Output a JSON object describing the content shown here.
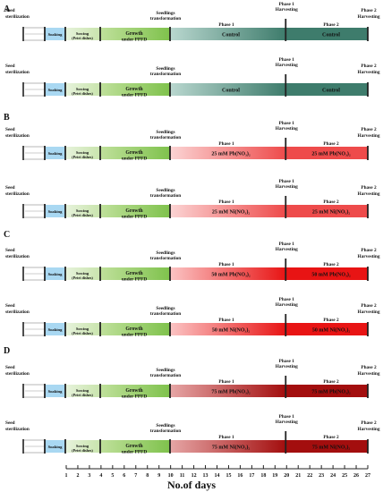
{
  "sections": [
    {
      "letter": "A",
      "rows": [
        {
          "seed": [
            "Seed",
            "sterilization"
          ],
          "soaking": "Soaking",
          "sowing": [
            "Sowing",
            "(Petri dishes)"
          ],
          "growth": [
            "Growth",
            "under PPFD"
          ],
          "transformation": [
            "Seedlings",
            "transformation"
          ],
          "phase1": "Phase 1",
          "phase1_harvest": [
            "Phase 1",
            "Harvesting"
          ],
          "phase2": "Phase 2",
          "phase2_harvest": [
            "Phase 2",
            "Harvesting"
          ],
          "treatment1": "Control",
          "treatment2": "Control",
          "colors": {
            "fade": "#b9d7cf",
            "end": "#3e7c6c"
          }
        },
        {
          "seed": [
            "Seed",
            "sterilization"
          ],
          "soaking": "Soaking",
          "sowing": [
            "Sowing",
            "(Petri dishes)"
          ],
          "growth": [
            "Growth",
            "under PPFD"
          ],
          "transformation": [
            "Seedlings",
            "transformation"
          ],
          "phase1": "",
          "phase1_harvest": [
            "Phase 1",
            "Harvesting"
          ],
          "phase2": "",
          "phase2_harvest": [
            "Phase 2",
            "Harvesting"
          ],
          "treatment1": "Control",
          "treatment2": "Control",
          "colors": {
            "fade": "#b9d7cf",
            "end": "#3e7c6c"
          }
        }
      ]
    },
    {
      "letter": "B",
      "rows": [
        {
          "seed": [
            "Seed",
            "sterilization"
          ],
          "soaking": "Soaking",
          "sowing": [
            "Sowing",
            "(Petri dishes)"
          ],
          "growth": [
            "Growth",
            "under PPFD"
          ],
          "transformation": [
            "Seedlings",
            "transformation"
          ],
          "phase1": "Phase 1",
          "phase1_harvest": [
            "Phase 1",
            "Harvesting"
          ],
          "phase2": "Phase 2",
          "phase2_harvest": [
            "Phase 2",
            "Harvesting"
          ],
          "treatment1": "25 mM Pb(NO₃)₂",
          "treatment2": "25 mM Pb(NO₃)₂",
          "colors": {
            "fade": "#fbd4d4",
            "end": "#ee4b4b"
          }
        },
        {
          "seed": [
            "Seed",
            "sterilization"
          ],
          "soaking": "Soaking",
          "sowing": [
            "Sowing",
            "(Petri dishes)"
          ],
          "growth": [
            "Growth",
            "under PPFD"
          ],
          "transformation": [
            "Seedlings",
            "transformation"
          ],
          "phase1": "Phase 1",
          "phase1_harvest": [
            "Phase 1",
            "Harvesting"
          ],
          "phase2": "Phase 2",
          "phase2_harvest": [
            "Phase 2",
            "Harvesting"
          ],
          "treatment1": "25 mM Ni(NO₃)₂",
          "treatment2": "25 mM Ni(NO₃)₂",
          "colors": {
            "fade": "#fbd4d4",
            "end": "#ee4b4b"
          }
        }
      ]
    },
    {
      "letter": "C",
      "rows": [
        {
          "seed": [
            "Seed",
            "sterilization"
          ],
          "soaking": "Soaking",
          "sowing": [
            "Sowing",
            "(Petri dishes)"
          ],
          "growth": [
            "Growth",
            "under PPFD"
          ],
          "transformation": [
            "Seedlings",
            "transformation"
          ],
          "phase1": "Phase 1",
          "phase1_harvest": [
            "Phase 1",
            "Harvesting"
          ],
          "phase2": "Phase 2",
          "phase2_harvest": [
            "Phase 2",
            "Harvesting"
          ],
          "treatment1": "50 mM Pb(NO₃)₂",
          "treatment2": "50 mM Pb(NO₃)₂",
          "colors": {
            "fade": "#fbc4c4",
            "end": "#e81414"
          }
        },
        {
          "seed": [
            "Seed",
            "sterilization"
          ],
          "soaking": "Soaking",
          "sowing": [
            "Sowing",
            "(Petri dishes)"
          ],
          "growth": [
            "Growth",
            "under PPFD"
          ],
          "transformation": [
            "Seedlings",
            "transformation"
          ],
          "phase1": "Phase 1",
          "phase1_harvest": [
            "Phase 1",
            "Harvesting"
          ],
          "phase2": "Phase 2",
          "phase2_harvest": [
            "Phase 2",
            "Harvesting"
          ],
          "treatment1": "50 mM Ni(NO₃)₂",
          "treatment2": "50 mM Ni(NO₃)₂",
          "colors": {
            "fade": "#fbc4c4",
            "end": "#e81414"
          }
        }
      ]
    },
    {
      "letter": "D",
      "rows": [
        {
          "seed": [
            "Seed",
            "sterilization"
          ],
          "soaking": "Soaking",
          "sowing": [
            "Sowing",
            "(Petri dishes)"
          ],
          "growth": [
            "Growth",
            "under PPFD"
          ],
          "transformation": [
            "Seedlings",
            "transformation"
          ],
          "phase1": "Phase 1",
          "phase1_harvest": [
            "Phase 1",
            "Harvesting"
          ],
          "phase2": "Phase 2",
          "phase2_harvest": [
            "Phase 2",
            "Harvesting"
          ],
          "treatment1": "75 mM Pb(NO₃)₂",
          "treatment2": "75 mM Pb(NO₃)₂",
          "colors": {
            "fade": "#e6a6a6",
            "end": "#a30e0e"
          }
        },
        {
          "seed": [
            "Seed",
            "sterilization"
          ],
          "soaking": "Soaking",
          "sowing": [
            "Sowing",
            "(Petri dishes)"
          ],
          "growth": [
            "Growth",
            "under PPFD"
          ],
          "transformation": [
            "Seedlings",
            "transformation"
          ],
          "phase1": "Phase 1",
          "phase1_harvest": [
            "Phase 1",
            "Harvesting"
          ],
          "phase2": "Phase 2",
          "phase2_harvest": [
            "Phase 2",
            "Harvesting"
          ],
          "treatment1": "75 mM Ni(NO₃)₂",
          "treatment2": "75 mM Ni(NO₃)₂",
          "colors": {
            "fade": "#e6a6a6",
            "end": "#a30e0e"
          }
        }
      ]
    }
  ],
  "stage_colors": {
    "soaking": "#a9d8f2",
    "sowing_start": "#e7f3dc",
    "sowing_end": "#c9e4ad",
    "growth_start": "#bfe09b",
    "growth_end": "#7fc24c"
  },
  "axis": {
    "days": [
      "1",
      "2",
      "3",
      "4",
      "5",
      "6",
      "7",
      "8",
      "9",
      "10",
      "11",
      "12",
      "13",
      "14",
      "15",
      "16",
      "17",
      "18",
      "19",
      "20",
      "21",
      "22",
      "23",
      "24",
      "25",
      "26",
      "27"
    ],
    "label": "No.of days"
  }
}
